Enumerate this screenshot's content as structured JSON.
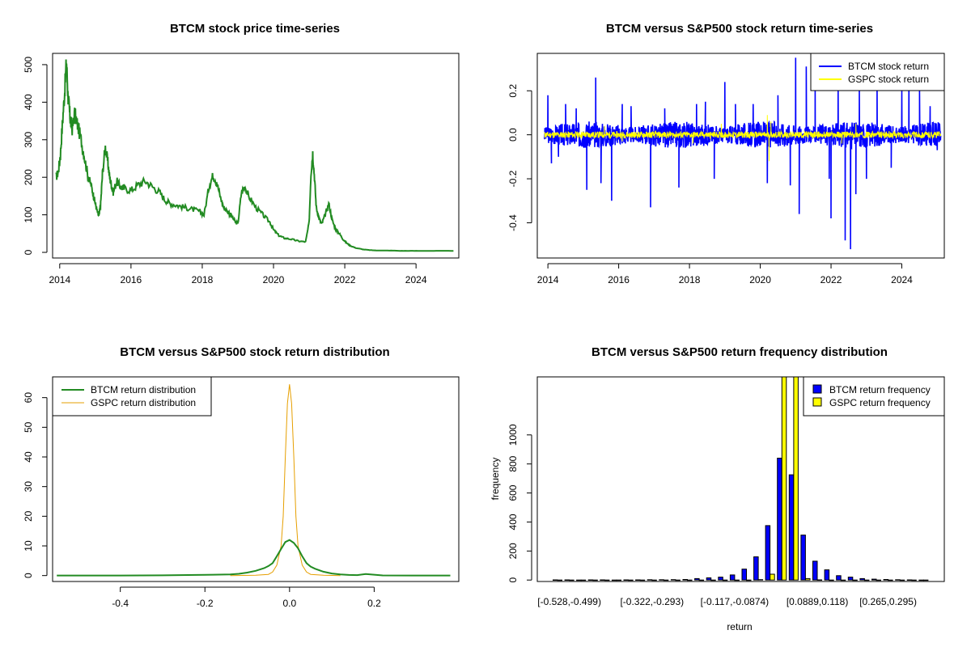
{
  "chart_data": [
    {
      "id": "price",
      "type": "line",
      "title": "BTCM stock price time-series",
      "xlabel": "",
      "ylabel": "",
      "xlim": [
        2013.8,
        2025.2
      ],
      "ylim": [
        -15,
        530
      ],
      "x_ticks": [
        "2014",
        "2016",
        "2018",
        "2020",
        "2022",
        "2024"
      ],
      "y_ticks": [
        "0",
        "100",
        "200",
        "300",
        "400",
        "500"
      ],
      "series": [
        {
          "color": "#228B22",
          "x": [
            2013.9,
            2013.96,
            2014.02,
            2014.08,
            2014.14,
            2014.19,
            2014.23,
            2014.27,
            2014.3,
            2014.35,
            2014.42,
            2014.5,
            2014.6,
            2014.7,
            2014.8,
            2014.88,
            2014.95,
            2015.0,
            2015.05,
            2015.1,
            2015.15,
            2015.2,
            2015.28,
            2015.35,
            2015.4,
            2015.45,
            2015.5,
            2015.6,
            2015.7,
            2015.8,
            2016.0,
            2016.2,
            2016.4,
            2016.6,
            2016.8,
            2016.95,
            2017.1,
            2017.3,
            2017.5,
            2017.7,
            2017.9,
            2018.05,
            2018.2,
            2018.3,
            2018.4,
            2018.5,
            2018.6,
            2018.7,
            2018.8,
            2018.9,
            2019.0,
            2019.1,
            2019.2,
            2019.3,
            2019.5,
            2019.7,
            2019.9,
            2020.0,
            2020.15,
            2020.3,
            2020.5,
            2020.7,
            2020.9,
            2021.0,
            2021.05,
            2021.1,
            2021.15,
            2021.2,
            2021.28,
            2021.35,
            2021.45,
            2021.55,
            2021.65,
            2021.75,
            2021.85,
            2021.95,
            2022.05,
            2022.15,
            2022.3,
            2022.5,
            2022.7,
            2022.9,
            2023.2,
            2023.6,
            2024.0,
            2024.5,
            2025.05
          ],
          "y": [
            200,
            215,
            260,
            350,
            430,
            510,
            420,
            380,
            350,
            330,
            370,
            340,
            300,
            250,
            200,
            180,
            150,
            130,
            110,
            95,
            130,
            210,
            280,
            240,
            200,
            180,
            160,
            190,
            175,
            170,
            165,
            180,
            190,
            175,
            160,
            140,
            130,
            125,
            120,
            115,
            110,
            100,
            180,
            205,
            190,
            150,
            120,
            110,
            100,
            85,
            75,
            160,
            175,
            150,
            120,
            100,
            80,
            60,
            45,
            38,
            35,
            30,
            28,
            80,
            210,
            265,
            200,
            120,
            90,
            75,
            100,
            130,
            85,
            60,
            50,
            35,
            25,
            18,
            12,
            8,
            6,
            5,
            5,
            4,
            4,
            4,
            4
          ]
        }
      ]
    },
    {
      "id": "returns",
      "type": "line",
      "title": "BTCM versus S&P500 stock return time-series",
      "xlabel": "",
      "ylabel": "",
      "xlim": [
        2013.7,
        2025.2
      ],
      "ylim": [
        -0.56,
        0.37
      ],
      "x_ticks": [
        "2014",
        "2016",
        "2018",
        "2020",
        "2022",
        "2024"
      ],
      "y_ticks": [
        "-0.4",
        "-0.2",
        "0.0",
        "0.2"
      ],
      "legend_position": "top-right",
      "series": [
        {
          "name": "BTCM stock return",
          "color": "#0000FF",
          "spikes": [
            [
              2014.0,
              0.18
            ],
            [
              2014.1,
              -0.13
            ],
            [
              2014.3,
              -0.1
            ],
            [
              2014.5,
              0.14
            ],
            [
              2014.8,
              0.12
            ],
            [
              2015.1,
              -0.25
            ],
            [
              2015.35,
              0.26
            ],
            [
              2015.5,
              -0.22
            ],
            [
              2015.8,
              -0.3
            ],
            [
              2016.1,
              0.14
            ],
            [
              2016.35,
              0.13
            ],
            [
              2016.9,
              -0.33
            ],
            [
              2017.3,
              0.12
            ],
            [
              2017.7,
              -0.24
            ],
            [
              2018.2,
              0.14
            ],
            [
              2018.45,
              0.15
            ],
            [
              2018.7,
              -0.2
            ],
            [
              2019.0,
              0.24
            ],
            [
              2019.3,
              0.14
            ],
            [
              2019.8,
              0.14
            ],
            [
              2020.2,
              -0.22
            ],
            [
              2020.5,
              0.18
            ],
            [
              2020.85,
              -0.23
            ],
            [
              2021.0,
              0.35
            ],
            [
              2021.1,
              -0.36
            ],
            [
              2021.3,
              0.31
            ],
            [
              2021.55,
              0.22
            ],
            [
              2021.95,
              -0.2
            ],
            [
              2022.0,
              -0.38
            ],
            [
              2022.2,
              0.22
            ],
            [
              2022.4,
              -0.48
            ],
            [
              2022.55,
              -0.52
            ],
            [
              2022.7,
              -0.27
            ],
            [
              2022.8,
              0.2
            ],
            [
              2023.0,
              -0.2
            ],
            [
              2023.3,
              0.25
            ],
            [
              2023.7,
              -0.15
            ],
            [
              2024.0,
              0.2
            ],
            [
              2024.2,
              0.3
            ],
            [
              2024.5,
              0.2
            ],
            [
              2024.8,
              0.13
            ],
            [
              2025.0,
              -0.07
            ]
          ]
        },
        {
          "name": "GSPC stock return",
          "color": "#FFFF00",
          "spikes": [
            [
              2015.6,
              0.04
            ],
            [
              2016.1,
              -0.03
            ],
            [
              2018.1,
              -0.04
            ],
            [
              2018.9,
              0.05
            ],
            [
              2020.2,
              0.09
            ],
            [
              2020.25,
              -0.12
            ],
            [
              2020.3,
              0.06
            ],
            [
              2022.3,
              -0.04
            ],
            [
              2022.7,
              0.05
            ]
          ]
        }
      ]
    },
    {
      "id": "density",
      "type": "line",
      "title": "BTCM versus S&P500 stock return distribution",
      "xlabel": "",
      "ylabel": "",
      "xlim": [
        -0.56,
        0.4
      ],
      "ylim": [
        -2,
        67
      ],
      "x_ticks": [
        "-0.4",
        "-0.2",
        "0.0",
        "0.2"
      ],
      "y_ticks": [
        "0",
        "10",
        "20",
        "30",
        "40",
        "50",
        "60"
      ],
      "legend_position": "top-left",
      "series": [
        {
          "name": "BTCM return distribution",
          "color": "#228B22",
          "x": [
            -0.55,
            -0.4,
            -0.3,
            -0.22,
            -0.18,
            -0.14,
            -0.12,
            -0.1,
            -0.08,
            -0.06,
            -0.05,
            -0.04,
            -0.03,
            -0.02,
            -0.01,
            0.0,
            0.01,
            0.02,
            0.03,
            0.04,
            0.05,
            0.06,
            0.08,
            0.1,
            0.12,
            0.14,
            0.16,
            0.18,
            0.22,
            0.3,
            0.38
          ],
          "y": [
            0.02,
            0.03,
            0.08,
            0.2,
            0.3,
            0.4,
            0.6,
            1.0,
            1.6,
            2.5,
            3.2,
            4.2,
            6.5,
            9.0,
            11.3,
            12.0,
            11.0,
            9.2,
            6.5,
            4.2,
            3.0,
            2.3,
            1.3,
            0.7,
            0.4,
            0.2,
            0.15,
            0.5,
            0.05,
            0.02,
            0.01
          ]
        },
        {
          "name": "GSPC return distribution",
          "color": "#E69F00",
          "x": [
            -0.14,
            -0.08,
            -0.05,
            -0.04,
            -0.03,
            -0.02,
            -0.015,
            -0.01,
            -0.005,
            0.0,
            0.005,
            0.01,
            0.015,
            0.02,
            0.03,
            0.04,
            0.05,
            0.08,
            0.12
          ],
          "y": [
            0.0,
            0.1,
            0.4,
            1.2,
            3.5,
            10.0,
            20.0,
            40.0,
            58.0,
            64.5,
            58.0,
            40.0,
            20.0,
            10.0,
            3.5,
            1.2,
            0.4,
            0.1,
            0.0
          ]
        }
      ]
    },
    {
      "id": "frequency",
      "type": "bar",
      "title": "BTCM versus S&P500 return frequency distribution",
      "xlabel": "return",
      "ylabel": "frequency",
      "ylim": [
        -10,
        1400
      ],
      "y_ticks": [
        "0",
        "200",
        "400",
        "600",
        "800",
        "1000"
      ],
      "x_tick_labels": [
        "[-0.528,-0.499)",
        "[-0.322,-0.293)",
        "[-0.117,-0.0874)",
        "[0.0889,0.118)",
        "[0.265,0.295)"
      ],
      "x_tick_label_bins": [
        1,
        8,
        15,
        22,
        28
      ],
      "legend_position": "top-right",
      "bin_count": 32,
      "series": [
        {
          "name": "BTCM return frequency",
          "color": "#0000FF",
          "values": [
            1,
            1,
            0,
            1,
            1,
            0,
            1,
            1,
            2,
            2,
            3,
            4,
            10,
            15,
            20,
            35,
            75,
            160,
            375,
            840,
            725,
            310,
            130,
            70,
            30,
            20,
            10,
            6,
            4,
            2,
            1,
            0
          ]
        },
        {
          "name": "GSPC return frequency",
          "color": "#FFFF00",
          "values": [
            0,
            0,
            0,
            0,
            0,
            0,
            0,
            0,
            0,
            0,
            0,
            0,
            0,
            0,
            0,
            0,
            0,
            3,
            40,
            1400,
            1400,
            10,
            1,
            0,
            0,
            0,
            0,
            0,
            0,
            0,
            0,
            0
          ]
        }
      ]
    }
  ]
}
